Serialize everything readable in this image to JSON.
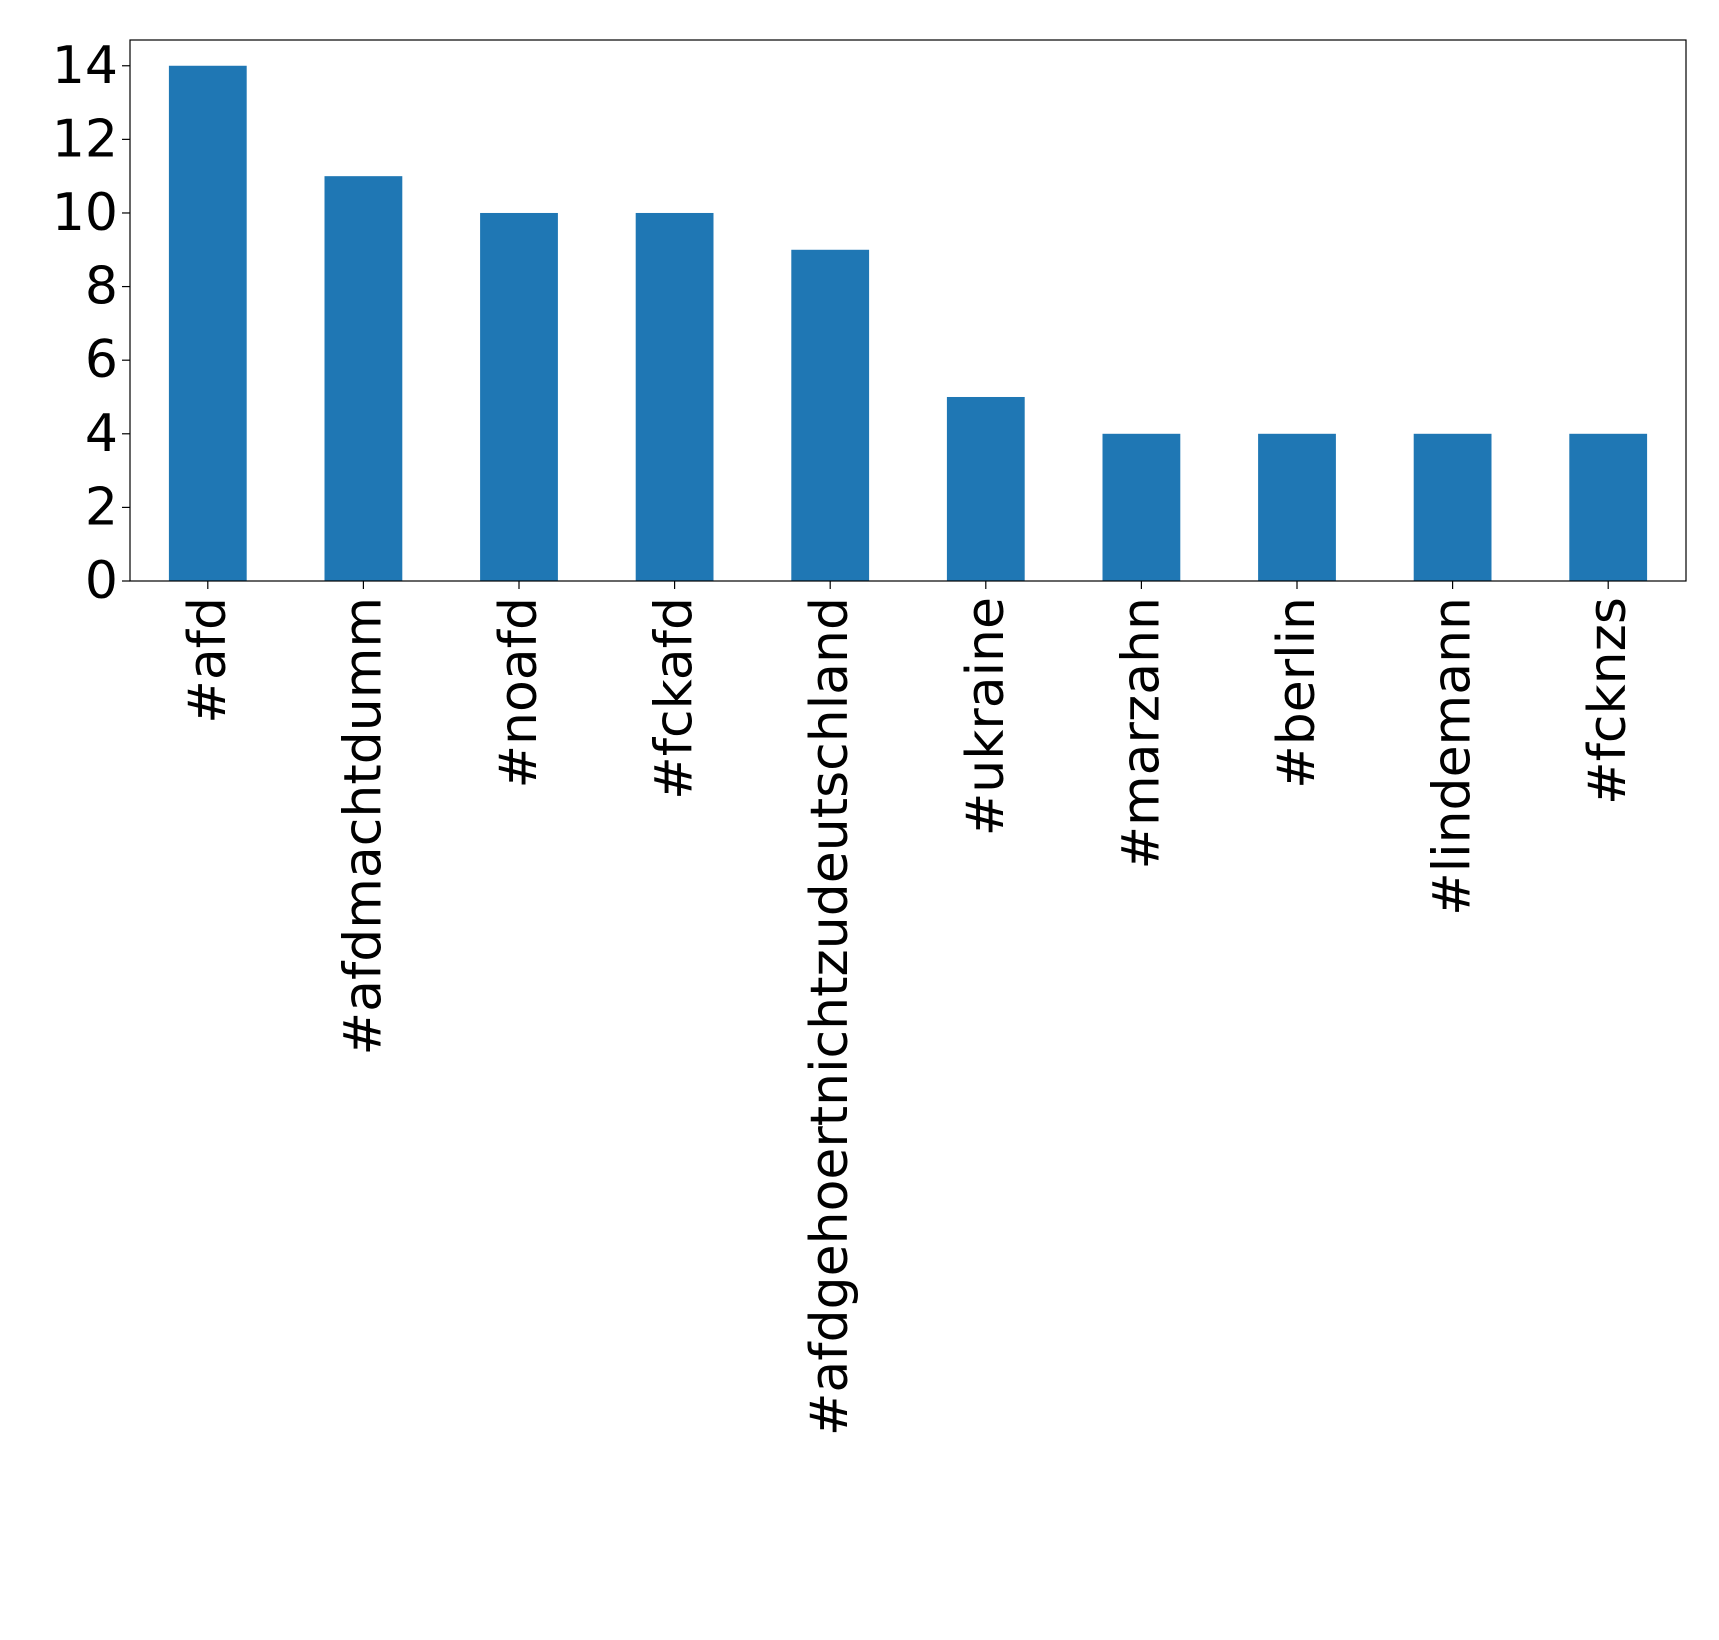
{
  "chart_data": {
    "type": "bar",
    "title": "",
    "xlabel": "",
    "ylabel": "",
    "categories": [
      "#afd",
      "#afdmachtdumm",
      "#noafd",
      "#fckafd",
      "#afdgehoertnichtzudeutschland",
      "#ukraine",
      "#marzahn",
      "#berlin",
      "#lindemann",
      "#fcknzs"
    ],
    "values": [
      14,
      11,
      10,
      10,
      9,
      5,
      4,
      4,
      4,
      4
    ],
    "ylim": [
      0,
      14.7
    ],
    "yticks": [
      0,
      2,
      4,
      6,
      8,
      10,
      12,
      14
    ],
    "xtick_rotation": 90,
    "grid": false,
    "legend": "none",
    "bar_color": "#1f77b4"
  }
}
